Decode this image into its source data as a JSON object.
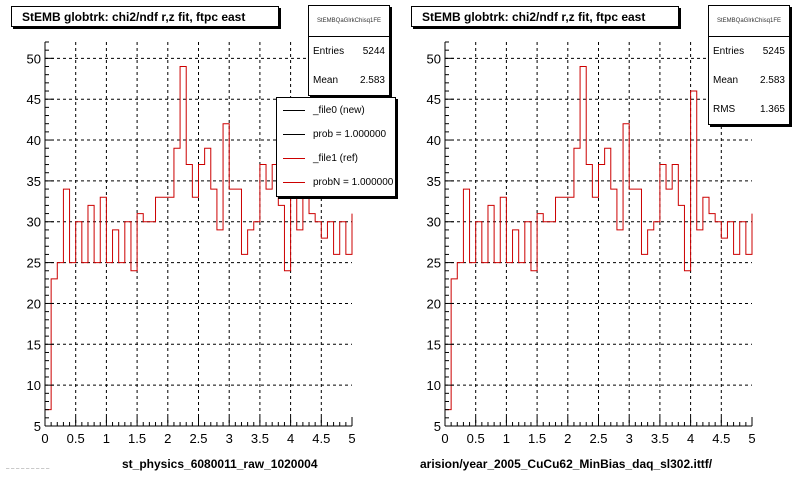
{
  "chart_data": [
    {
      "type": "histogram",
      "title": "StEMB globtrk: chi2/ndf r,z fit, ftpc east",
      "xlim": [
        0,
        5
      ],
      "ylim": [
        5,
        52
      ],
      "x_ticks": [
        "0",
        "0.5",
        "1",
        "1.5",
        "2",
        "2.5",
        "3",
        "3.5",
        "4",
        "4.5",
        "5"
      ],
      "y_ticks": [
        "5",
        "10",
        "15",
        "20",
        "25",
        "30",
        "35",
        "40",
        "45",
        "50"
      ],
      "grid": true,
      "bin_width": 0.1,
      "series": [
        {
          "name": "_file1 (ref)",
          "color": "#cc0000",
          "values": [
            7,
            23,
            25,
            34,
            25,
            30,
            25,
            32,
            25,
            33,
            25,
            29,
            25,
            30,
            24,
            31,
            30,
            30,
            33,
            33,
            33,
            39,
            49,
            37,
            33,
            37,
            39,
            34,
            29,
            42,
            34,
            34,
            26,
            29,
            30,
            37,
            34,
            37,
            32,
            24,
            40,
            29,
            33,
            31,
            30,
            28,
            30,
            26,
            30,
            26,
            31
          ]
        }
      ],
      "stats": {
        "id": "StEMBQaGlrkChisq1FE",
        "rows": [
          {
            "label": "Entries",
            "value": "5244"
          },
          {
            "label": "Mean",
            "value": "2.583"
          }
        ]
      },
      "legend": {
        "position": "top-right",
        "entries": [
          {
            "label": "_file0 (new)",
            "color": "#000000"
          },
          {
            "label": "prob = 1.000000",
            "color": "#000000"
          },
          {
            "label": "_file1 (ref)",
            "color": "#cc0000"
          },
          {
            "label": "probN = 1.000000",
            "color": "#cc0000"
          }
        ]
      },
      "filename": "st_physics_6080011_raw_1020004"
    },
    {
      "type": "histogram",
      "title": "StEMB globtrk: chi2/ndf r,z fit, ftpc east",
      "xlim": [
        0,
        5
      ],
      "ylim": [
        5,
        52
      ],
      "x_ticks": [
        "0",
        "0.5",
        "1",
        "1.5",
        "2",
        "2.5",
        "3",
        "3.5",
        "4",
        "4.5",
        "5"
      ],
      "y_ticks": [
        "5",
        "10",
        "15",
        "20",
        "25",
        "30",
        "35",
        "40",
        "45",
        "50"
      ],
      "grid": true,
      "bin_width": 0.1,
      "series": [
        {
          "color": "#cc0000",
          "values": [
            7,
            23,
            25,
            34,
            25,
            30,
            25,
            32,
            25,
            33,
            25,
            29,
            25,
            30,
            24,
            31,
            30,
            30,
            33,
            33,
            33,
            39,
            49,
            37,
            33,
            37,
            39,
            34,
            29,
            42,
            34,
            34,
            26,
            29,
            30,
            37,
            34,
            37,
            32,
            24,
            46,
            29,
            33,
            31,
            30,
            28,
            30,
            26,
            30,
            26,
            31
          ]
        }
      ],
      "stats": {
        "id": "StEMBQaGlrkChisq1FE",
        "rows": [
          {
            "label": "Entries",
            "value": "5245"
          },
          {
            "label": "Mean",
            "value": "2.583"
          },
          {
            "label": "RMS",
            "value": "1.365"
          }
        ]
      },
      "filename": "arision/year_2005_CuCu62_MinBias_daq_sl302.ittf/"
    }
  ],
  "footer_fragment": "– – – –   – – – – –"
}
